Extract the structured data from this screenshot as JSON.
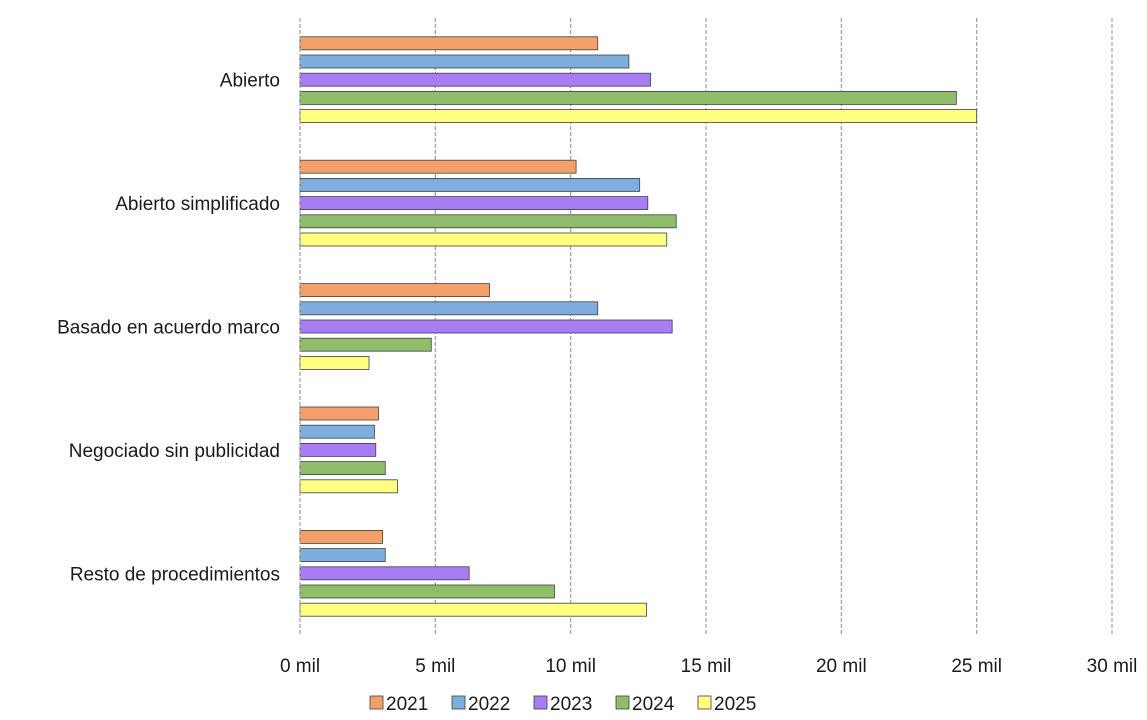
{
  "chart_data": {
    "type": "bar",
    "orientation": "horizontal",
    "title": "",
    "xlabel": "",
    "ylabel": "",
    "categories": [
      "Abierto",
      "Abierto simplificado",
      "Basado en acuerdo marco",
      "Negociado sin publicidad",
      "Resto de procedimientos"
    ],
    "series": [
      {
        "name": "2021",
        "color": "#F4A06A",
        "values": [
          11000,
          10200,
          7000,
          2900,
          3050
        ]
      },
      {
        "name": "2022",
        "color": "#7EAEDD",
        "values": [
          12150,
          12550,
          11000,
          2750,
          3150
        ]
      },
      {
        "name": "2023",
        "color": "#A87CF5",
        "values": [
          12950,
          12850,
          13750,
          2800,
          6250
        ]
      },
      {
        "name": "2024",
        "color": "#8FBD6A",
        "values": [
          24250,
          13900,
          4850,
          3150,
          9400
        ]
      },
      {
        "name": "2025",
        "color": "#FFFF80",
        "values": [
          25000,
          13550,
          2550,
          3600,
          12800
        ]
      }
    ],
    "xlim": [
      0,
      30000
    ],
    "x_ticks": [
      0,
      5000,
      10000,
      15000,
      20000,
      25000,
      30000
    ],
    "x_tick_labels": [
      "0 mil",
      "5 mil",
      "10 mil",
      "15 mil",
      "20 mil",
      "25 mil",
      "30 mil"
    ],
    "grid": "vertical dashed",
    "legend_position": "bottom"
  }
}
